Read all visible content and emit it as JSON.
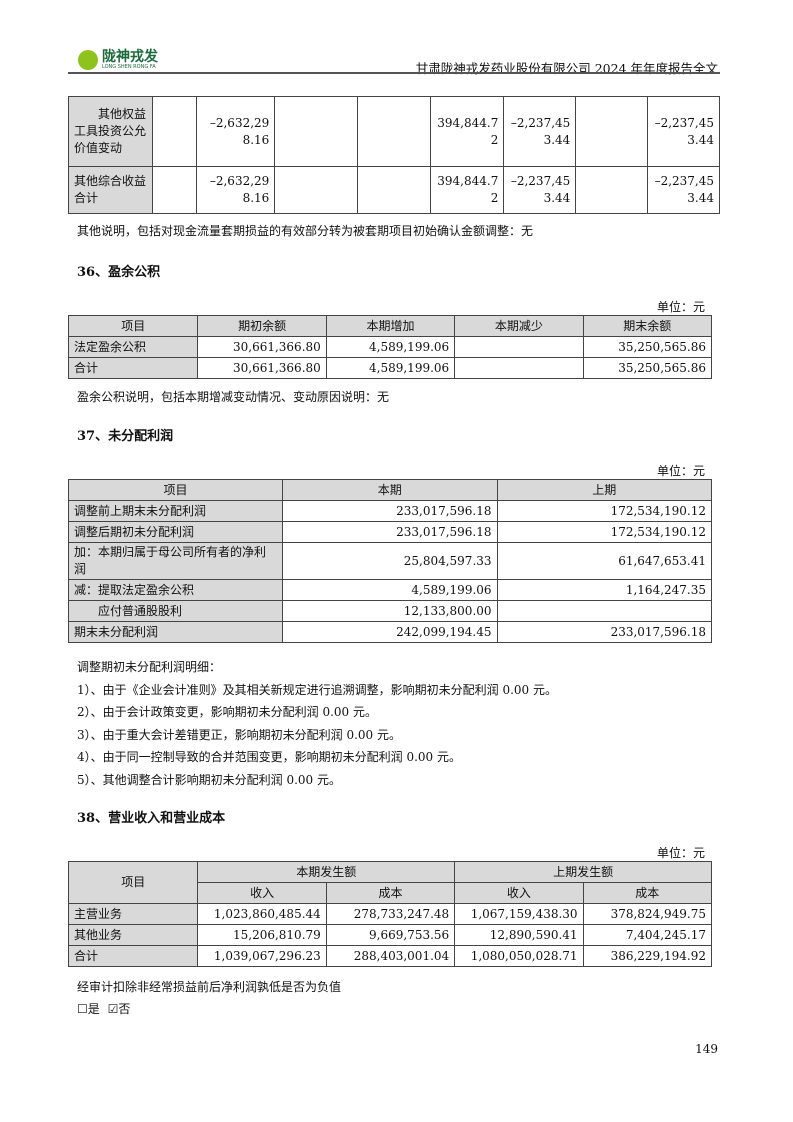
{
  "header": {
    "logo_text": "陇神戎发",
    "logo_sub": "LONG SHEN RONG FA",
    "doc_title": "甘肃陇神戎发药业股份有限公司 2024 年年度报告全文",
    "brand_color": "#8dc21f"
  },
  "table_oci": {
    "rows": [
      {
        "label": "其他权益工具投资公允价值变动",
        "c1": "",
        "c2": "–2,632,298.16",
        "c3": "",
        "c4": "",
        "c5": "394,844.72",
        "c6": "–2,237,453.44",
        "c7": "",
        "c8": "–2,237,453.44"
      },
      {
        "label": "其他综合收益合计",
        "c1": "",
        "c2": "–2,632,298.16",
        "c3": "",
        "c4": "",
        "c5": "394,844.72",
        "c6": "–2,237,453.44",
        "c7": "",
        "c8": "–2,237,453.44"
      }
    ]
  },
  "note_oci": "其他说明，包括对现金流量套期损益的有效部分转为被套期项目初始确认金额调整：无",
  "s36": {
    "title": "36、盈余公积",
    "unit": "单位：元",
    "headers": [
      "项目",
      "期初余额",
      "本期增加",
      "本期减少",
      "期末余额"
    ],
    "rows": [
      [
        "法定盈余公积",
        "30,661,366.80",
        "4,589,199.06",
        "",
        "35,250,565.86"
      ],
      [
        "合计",
        "30,661,366.80",
        "4,589,199.06",
        "",
        "35,250,565.86"
      ]
    ],
    "note": "盈余公积说明，包括本期增减变动情况、变动原因说明：无"
  },
  "s37": {
    "title": "37、未分配利润",
    "unit": "单位：元",
    "headers": [
      "项目",
      "本期",
      "上期"
    ],
    "rows": [
      [
        "调整前上期末未分配利润",
        "233,017,596.18",
        "172,534,190.12"
      ],
      [
        "调整后期初未分配利润",
        "233,017,596.18",
        "172,534,190.12"
      ],
      [
        "加：本期归属于母公司所有者的净利润",
        "25,804,597.33",
        "61,647,653.41"
      ],
      [
        "减：提取法定盈余公积",
        "4,589,199.06",
        "1,164,247.35"
      ],
      [
        "　　应付普通股股利",
        "12,133,800.00",
        ""
      ],
      [
        "期末未分配利润",
        "242,099,194.45",
        "233,017,596.18"
      ]
    ],
    "notes": [
      "调整期初未分配利润明细：",
      "1）、由于《企业会计准则》及其相关新规定进行追溯调整，影响期初未分配利润 0.00 元。",
      "2）、由于会计政策变更，影响期初未分配利润 0.00 元。",
      "3）、由于重大会计差错更正，影响期初未分配利润 0.00 元。",
      "4）、由于同一控制导致的合并范围变更，影响期初未分配利润 0.00 元。",
      "5）、其他调整合计影响期初未分配利润 0.00 元。"
    ]
  },
  "s38": {
    "title": "38、营业收入和营业成本",
    "unit": "单位：元",
    "h_item": "项目",
    "h_cur": "本期发生额",
    "h_prev": "上期发生额",
    "h_sub": [
      "收入",
      "成本",
      "收入",
      "成本"
    ],
    "rows": [
      [
        "主营业务",
        "1,023,860,485.44",
        "278,733,247.48",
        "1,067,159,438.30",
        "378,824,949.75"
      ],
      [
        "其他业务",
        "15,206,810.79",
        "9,669,753.56",
        "12,890,590.41",
        "7,404,245.17"
      ],
      [
        "合计",
        "1,039,067,296.23",
        "288,403,001.04",
        "1,080,050,028.71",
        "386,229,194.92"
      ]
    ],
    "question": "经审计扣除非经常损益前后净利润孰低是否为负值",
    "opt_yes": "是",
    "opt_no": "否",
    "opt_yes_checked": false,
    "opt_no_checked": true
  },
  "page_number": "149"
}
